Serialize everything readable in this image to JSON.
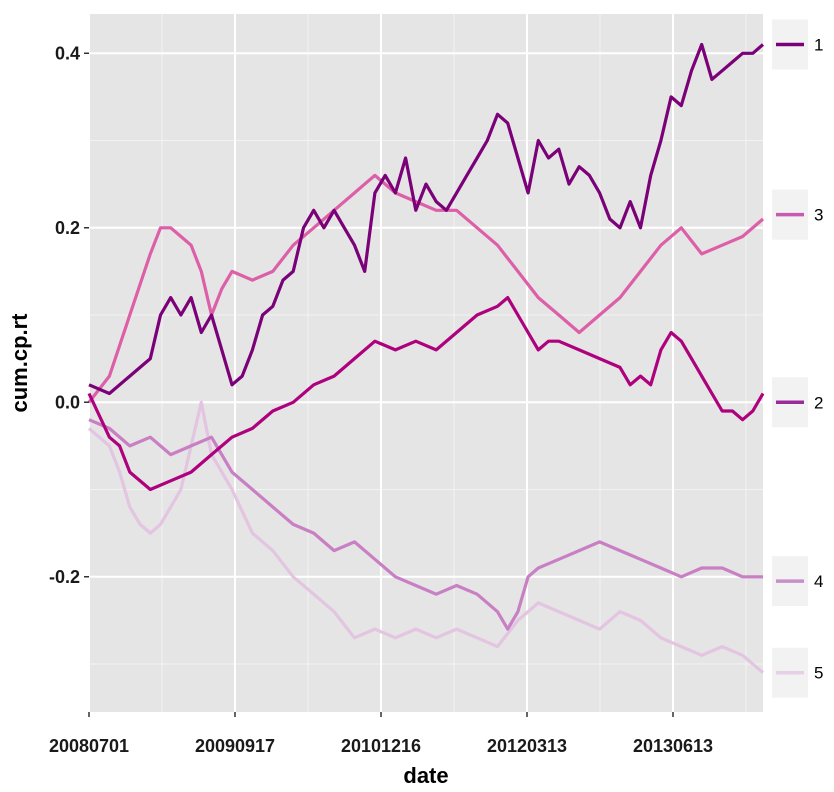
{
  "chart_data": {
    "type": "line",
    "xlabel": "date",
    "ylabel": "cum.cp.rt",
    "x_ticks": [
      "20080701",
      "20090917",
      "20101216",
      "20120313",
      "20130613"
    ],
    "y_ticks": [
      "-0.2",
      "0.0",
      "0.2",
      "0.4"
    ],
    "y_tick_values": [
      -0.2,
      0.0,
      0.2,
      0.4
    ],
    "ylim": [
      -0.355,
      0.445
    ],
    "x_range_months": [
      0,
      66
    ],
    "grid": true,
    "legend_position": "right",
    "series": [
      {
        "name": "1",
        "color": "#7a0177",
        "points": [
          [
            0,
            0.02
          ],
          [
            2,
            0.01
          ],
          [
            4,
            0.03
          ],
          [
            6,
            0.05
          ],
          [
            7,
            0.1
          ],
          [
            8,
            0.12
          ],
          [
            9,
            0.1
          ],
          [
            10,
            0.12
          ],
          [
            11,
            0.08
          ],
          [
            12,
            0.1
          ],
          [
            13,
            0.06
          ],
          [
            14,
            0.02
          ],
          [
            15,
            0.03
          ],
          [
            16,
            0.06
          ],
          [
            17,
            0.1
          ],
          [
            18,
            0.11
          ],
          [
            19,
            0.14
          ],
          [
            20,
            0.15
          ],
          [
            21,
            0.2
          ],
          [
            22,
            0.22
          ],
          [
            23,
            0.2
          ],
          [
            24,
            0.22
          ],
          [
            25,
            0.2
          ],
          [
            26,
            0.18
          ],
          [
            27,
            0.15
          ],
          [
            28,
            0.24
          ],
          [
            29,
            0.26
          ],
          [
            30,
            0.24
          ],
          [
            31,
            0.28
          ],
          [
            32,
            0.22
          ],
          [
            33,
            0.25
          ],
          [
            34,
            0.23
          ],
          [
            35,
            0.22
          ],
          [
            36,
            0.24
          ],
          [
            37,
            0.26
          ],
          [
            38,
            0.28
          ],
          [
            39,
            0.3
          ],
          [
            40,
            0.33
          ],
          [
            41,
            0.32
          ],
          [
            42,
            0.28
          ],
          [
            43,
            0.24
          ],
          [
            44,
            0.3
          ],
          [
            45,
            0.28
          ],
          [
            46,
            0.29
          ],
          [
            47,
            0.25
          ],
          [
            48,
            0.27
          ],
          [
            49,
            0.26
          ],
          [
            50,
            0.24
          ],
          [
            51,
            0.21
          ],
          [
            52,
            0.2
          ],
          [
            53,
            0.23
          ],
          [
            54,
            0.2
          ],
          [
            55,
            0.26
          ],
          [
            56,
            0.3
          ],
          [
            57,
            0.35
          ],
          [
            58,
            0.34
          ],
          [
            59,
            0.38
          ],
          [
            60,
            0.41
          ],
          [
            61,
            0.37
          ],
          [
            62,
            0.38
          ],
          [
            63,
            0.39
          ],
          [
            64,
            0.4
          ],
          [
            65,
            0.4
          ],
          [
            66,
            0.41
          ]
        ]
      },
      {
        "name": "2",
        "color": "#ae017e",
        "points": [
          [
            0,
            0.01
          ],
          [
            2,
            -0.04
          ],
          [
            3,
            -0.05
          ],
          [
            4,
            -0.08
          ],
          [
            6,
            -0.1
          ],
          [
            8,
            -0.09
          ],
          [
            10,
            -0.08
          ],
          [
            12,
            -0.06
          ],
          [
            14,
            -0.04
          ],
          [
            16,
            -0.03
          ],
          [
            18,
            -0.01
          ],
          [
            20,
            0.0
          ],
          [
            22,
            0.02
          ],
          [
            24,
            0.03
          ],
          [
            26,
            0.05
          ],
          [
            28,
            0.07
          ],
          [
            30,
            0.06
          ],
          [
            32,
            0.07
          ],
          [
            34,
            0.06
          ],
          [
            36,
            0.08
          ],
          [
            38,
            0.1
          ],
          [
            40,
            0.11
          ],
          [
            41,
            0.12
          ],
          [
            42,
            0.1
          ],
          [
            43,
            0.08
          ],
          [
            44,
            0.06
          ],
          [
            45,
            0.07
          ],
          [
            46,
            0.07
          ],
          [
            48,
            0.06
          ],
          [
            50,
            0.05
          ],
          [
            52,
            0.04
          ],
          [
            53,
            0.02
          ],
          [
            54,
            0.03
          ],
          [
            55,
            0.02
          ],
          [
            56,
            0.06
          ],
          [
            57,
            0.08
          ],
          [
            58,
            0.07
          ],
          [
            59,
            0.05
          ],
          [
            60,
            0.03
          ],
          [
            61,
            0.01
          ],
          [
            62,
            -0.01
          ],
          [
            63,
            -0.01
          ],
          [
            64,
            -0.02
          ],
          [
            65,
            -0.01
          ],
          [
            66,
            0.01
          ]
        ]
      },
      {
        "name": "3",
        "color": "#dd5fa8",
        "points": [
          [
            0,
            0.0
          ],
          [
            2,
            0.03
          ],
          [
            4,
            0.1
          ],
          [
            6,
            0.17
          ],
          [
            7,
            0.2
          ],
          [
            8,
            0.2
          ],
          [
            9,
            0.19
          ],
          [
            10,
            0.18
          ],
          [
            11,
            0.15
          ],
          [
            12,
            0.1
          ],
          [
            13,
            0.13
          ],
          [
            14,
            0.15
          ],
          [
            16,
            0.14
          ],
          [
            18,
            0.15
          ],
          [
            20,
            0.18
          ],
          [
            22,
            0.2
          ],
          [
            24,
            0.22
          ],
          [
            26,
            0.24
          ],
          [
            27,
            0.25
          ],
          [
            28,
            0.26
          ],
          [
            30,
            0.24
          ],
          [
            32,
            0.23
          ],
          [
            34,
            0.22
          ],
          [
            36,
            0.22
          ],
          [
            38,
            0.2
          ],
          [
            40,
            0.18
          ],
          [
            42,
            0.15
          ],
          [
            44,
            0.12
          ],
          [
            46,
            0.1
          ],
          [
            48,
            0.08
          ],
          [
            50,
            0.1
          ],
          [
            52,
            0.12
          ],
          [
            54,
            0.15
          ],
          [
            56,
            0.18
          ],
          [
            58,
            0.2
          ],
          [
            60,
            0.17
          ],
          [
            62,
            0.18
          ],
          [
            64,
            0.19
          ],
          [
            66,
            0.21
          ]
        ]
      },
      {
        "name": "4",
        "color": "#c97fc3",
        "points": [
          [
            0,
            -0.02
          ],
          [
            2,
            -0.03
          ],
          [
            4,
            -0.05
          ],
          [
            6,
            -0.04
          ],
          [
            8,
            -0.06
          ],
          [
            10,
            -0.05
          ],
          [
            12,
            -0.04
          ],
          [
            14,
            -0.08
          ],
          [
            16,
            -0.1
          ],
          [
            18,
            -0.12
          ],
          [
            20,
            -0.14
          ],
          [
            22,
            -0.15
          ],
          [
            24,
            -0.17
          ],
          [
            26,
            -0.16
          ],
          [
            28,
            -0.18
          ],
          [
            30,
            -0.2
          ],
          [
            32,
            -0.21
          ],
          [
            34,
            -0.22
          ],
          [
            36,
            -0.21
          ],
          [
            38,
            -0.22
          ],
          [
            40,
            -0.24
          ],
          [
            41,
            -0.26
          ],
          [
            42,
            -0.24
          ],
          [
            43,
            -0.2
          ],
          [
            44,
            -0.19
          ],
          [
            46,
            -0.18
          ],
          [
            48,
            -0.17
          ],
          [
            50,
            -0.16
          ],
          [
            52,
            -0.17
          ],
          [
            54,
            -0.18
          ],
          [
            56,
            -0.19
          ],
          [
            58,
            -0.2
          ],
          [
            60,
            -0.19
          ],
          [
            62,
            -0.19
          ],
          [
            64,
            -0.2
          ],
          [
            66,
            -0.2
          ]
        ]
      },
      {
        "name": "5",
        "color": "#e3c4e1",
        "points": [
          [
            0,
            -0.03
          ],
          [
            2,
            -0.05
          ],
          [
            3,
            -0.08
          ],
          [
            4,
            -0.12
          ],
          [
            5,
            -0.14
          ],
          [
            6,
            -0.15
          ],
          [
            7,
            -0.14
          ],
          [
            8,
            -0.12
          ],
          [
            9,
            -0.1
          ],
          [
            10,
            -0.05
          ],
          [
            11,
            0.0
          ],
          [
            12,
            -0.06
          ],
          [
            13,
            -0.08
          ],
          [
            14,
            -0.1
          ],
          [
            16,
            -0.15
          ],
          [
            18,
            -0.17
          ],
          [
            20,
            -0.2
          ],
          [
            22,
            -0.22
          ],
          [
            24,
            -0.24
          ],
          [
            26,
            -0.27
          ],
          [
            28,
            -0.26
          ],
          [
            30,
            -0.27
          ],
          [
            32,
            -0.26
          ],
          [
            34,
            -0.27
          ],
          [
            36,
            -0.26
          ],
          [
            38,
            -0.27
          ],
          [
            40,
            -0.28
          ],
          [
            42,
            -0.25
          ],
          [
            44,
            -0.23
          ],
          [
            46,
            -0.24
          ],
          [
            48,
            -0.25
          ],
          [
            50,
            -0.26
          ],
          [
            52,
            -0.24
          ],
          [
            54,
            -0.25
          ],
          [
            56,
            -0.27
          ],
          [
            58,
            -0.28
          ],
          [
            60,
            -0.29
          ],
          [
            62,
            -0.28
          ],
          [
            64,
            -0.29
          ],
          [
            66,
            -0.31
          ]
        ]
      }
    ],
    "legend": [
      {
        "label": "1",
        "color": "#7a0177",
        "value": 0.41
      },
      {
        "label": "3",
        "color": "#c95ab2",
        "value": 0.215
      },
      {
        "label": "2",
        "color": "#9b2a9b",
        "value": 0.0
      },
      {
        "label": "4",
        "color": "#c990c8",
        "value": -0.205
      },
      {
        "label": "5",
        "color": "#e6d0e6",
        "value": -0.31
      }
    ]
  }
}
